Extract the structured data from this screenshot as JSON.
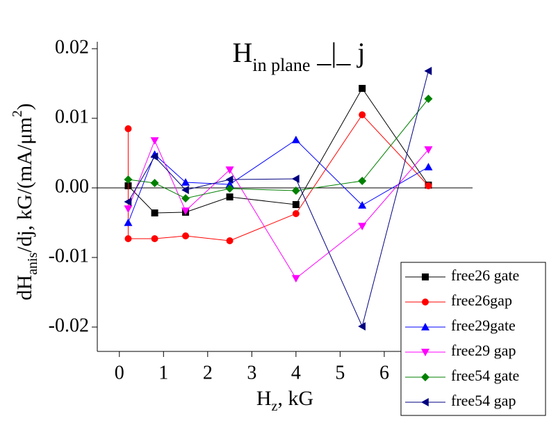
{
  "chart_data": {
    "type": "line",
    "title": {
      "main": "H",
      "sub": "in plane",
      "rest": " _|_ j"
    },
    "ylabel": {
      "main": "dH",
      "sub": "anis",
      "mid": "/dj, kG/(mA/μm",
      "sup": "2",
      "end": ")"
    },
    "xlabel": {
      "main": "H",
      "sub": "z",
      "rest": ", kG"
    },
    "xlim": [
      -0.5,
      8
    ],
    "ylim": [
      -0.0235,
      0.021
    ],
    "xticks": [
      0,
      1,
      2,
      3,
      4,
      5,
      6
    ],
    "yticks": [
      0.02,
      0.01,
      {
        "value": 0,
        "label": "0.00"
      },
      -0.01,
      -0.02
    ],
    "legend": "lower right",
    "series": [
      {
        "name": "free26 gate",
        "color": "#000000",
        "marker": "square",
        "x": [
          0.2,
          0.8,
          1.5,
          2.5,
          4,
          5.5,
          7
        ],
        "values": [
          0.0003,
          -0.0036,
          -0.0035,
          -0.0013,
          -0.0024,
          0.0143,
          0.0004
        ]
      },
      {
        "name": "free26gap",
        "color": "#ff0000",
        "marker": "circle",
        "x": [
          0.2,
          0.2,
          0.8,
          1.5,
          2.5,
          4,
          5.5,
          7
        ],
        "values": [
          0.0085,
          -0.0073,
          -0.0073,
          -0.0069,
          -0.0076,
          -0.0037,
          0.0105,
          0.0003
        ]
      },
      {
        "name": "free29gate",
        "color": "#0000ff",
        "marker": "triangle-up",
        "x": [
          0.2,
          0.8,
          1.5,
          2.5,
          4,
          5.5,
          7
        ],
        "values": [
          -0.005,
          0.0048,
          0.0008,
          0.0005,
          0.0069,
          -0.0025,
          0.003
        ]
      },
      {
        "name": "free29 gap",
        "color": "#ff00ff",
        "marker": "triangle-down",
        "x": [
          0.2,
          0.8,
          1.5,
          2.5,
          4,
          5.5,
          7
        ],
        "values": [
          -0.003,
          0.0068,
          -0.0033,
          0.0026,
          -0.013,
          -0.0055,
          0.0055
        ]
      },
      {
        "name": "free54 gate",
        "color": "#008000",
        "marker": "diamond",
        "x": [
          0.2,
          0.8,
          1.5,
          2.5,
          4,
          5.5,
          7
        ],
        "values": [
          0.0012,
          0.0007,
          -0.0015,
          -0.0001,
          -0.0004,
          0.001,
          0.0128
        ]
      },
      {
        "name": "free54 gap",
        "color": "#000080",
        "marker": "triangle-left",
        "x": [
          0.2,
          0.8,
          1.5,
          2.5,
          4,
          5.5,
          7
        ],
        "values": [
          -0.002,
          0.0045,
          -0.0003,
          0.0012,
          0.0013,
          -0.0199,
          0.0168
        ]
      }
    ]
  }
}
